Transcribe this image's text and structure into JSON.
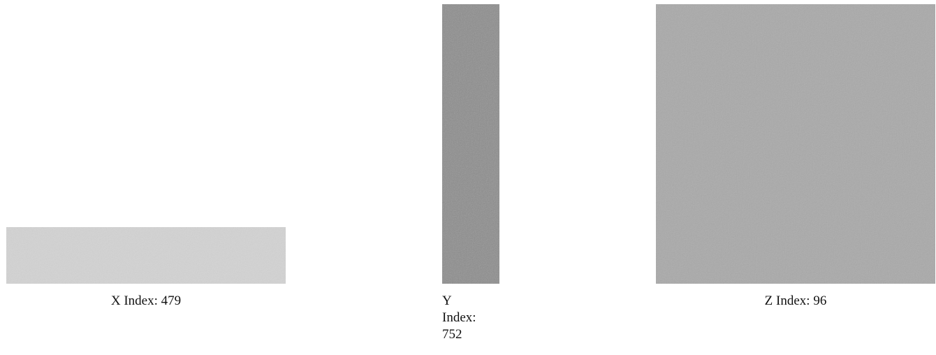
{
  "panels": [
    {
      "label": "X Index: 479"
    },
    {
      "label": "Y Index: 752"
    },
    {
      "label": "Z Index: 96"
    }
  ]
}
